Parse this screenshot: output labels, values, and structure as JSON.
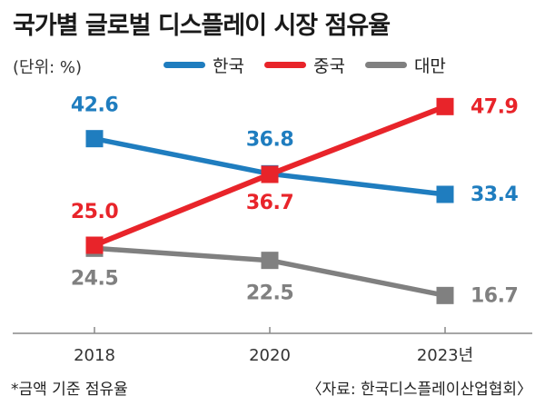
{
  "title": "국가별 글로벌 디스플레이 시장 점유율",
  "unit_label": "(단위: %)",
  "footnote": "*금액 기준 점유율",
  "source": "〈자료: 한국디스플레이산업협회〉",
  "chart_data": {
    "type": "line",
    "title": "국가별 글로벌 디스플레이 시장 점유율",
    "x": [
      "2018",
      "2020",
      "2023년"
    ],
    "xlabel": "",
    "ylabel": "",
    "unit": "%",
    "ylim": [
      10,
      52
    ],
    "grid": false,
    "legend_position": "top",
    "series": [
      {
        "name": "한국",
        "color": "#1f7dbf",
        "values": [
          42.6,
          36.8,
          33.4
        ],
        "value_labels": [
          "42.6",
          "36.8",
          "33.4"
        ]
      },
      {
        "name": "중국",
        "color": "#e8242a",
        "values": [
          25.0,
          36.7,
          47.9
        ],
        "value_labels": [
          "25.0",
          "36.7",
          "47.9"
        ]
      },
      {
        "name": "대만",
        "color": "#808080",
        "values": [
          24.5,
          22.5,
          16.7
        ],
        "value_labels": [
          "24.5",
          "22.5",
          "16.7"
        ]
      }
    ]
  }
}
